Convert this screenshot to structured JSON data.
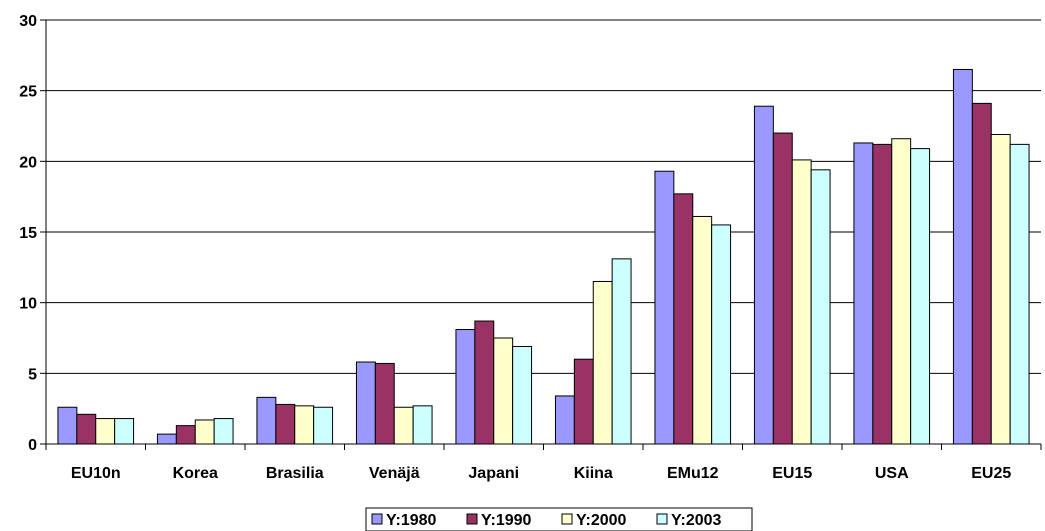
{
  "chart_data": {
    "type": "bar",
    "categories": [
      "EU10n",
      "Korea",
      "Brasilia",
      "Venäjä",
      "Japani",
      "Kiina",
      "EMu12",
      "EU15",
      "USA",
      "EU25"
    ],
    "series": [
      {
        "name": "Y:1980",
        "color": "#9999ff",
        "values": [
          2.6,
          0.7,
          3.3,
          5.8,
          8.1,
          3.4,
          19.3,
          23.9,
          21.3,
          26.5
        ]
      },
      {
        "name": "Y:1990",
        "color": "#993366",
        "values": [
          2.1,
          1.3,
          2.8,
          5.7,
          8.7,
          6.0,
          17.7,
          22.0,
          21.2,
          24.1
        ]
      },
      {
        "name": "Y:2000",
        "color": "#ffffcc",
        "values": [
          1.8,
          1.7,
          2.7,
          2.6,
          7.5,
          11.5,
          16.1,
          20.1,
          21.6,
          21.9
        ]
      },
      {
        "name": "Y:2003",
        "color": "#ccffff",
        "values": [
          1.8,
          1.8,
          2.6,
          2.7,
          6.9,
          13.1,
          15.5,
          19.4,
          20.9,
          21.2
        ]
      }
    ],
    "ylim": [
      0,
      30
    ],
    "yticks": [
      0,
      5,
      10,
      15,
      20,
      25,
      30
    ],
    "grid": true,
    "legend_position": "bottom"
  }
}
